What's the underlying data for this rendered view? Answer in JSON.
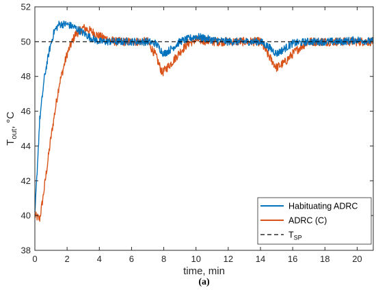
{
  "chart_data": {
    "type": "line",
    "xlabel": "time, min",
    "ylabel_main": "T",
    "ylabel_sub": "out",
    "ylabel_suffix": ", °C",
    "xlim": [
      0,
      21
    ],
    "ylim": [
      38,
      52
    ],
    "xticks": [
      0,
      2,
      4,
      6,
      8,
      10,
      12,
      14,
      16,
      18,
      20
    ],
    "yticks": [
      38,
      40,
      42,
      44,
      46,
      48,
      50,
      52
    ],
    "grid": false,
    "legend_position": "bottom-right",
    "subfigure_label": "(a)",
    "series": [
      {
        "name": "Habituating ADRC",
        "color": "#0072BD",
        "style": "solid",
        "noise": 0.22,
        "points": [
          [
            0,
            40.0
          ],
          [
            0.3,
            45.5
          ],
          [
            0.6,
            48.0
          ],
          [
            0.9,
            49.5
          ],
          [
            1.2,
            50.6
          ],
          [
            1.5,
            51.0
          ],
          [
            2.0,
            51.0
          ],
          [
            2.5,
            50.8
          ],
          [
            3.0,
            50.5
          ],
          [
            3.5,
            50.2
          ],
          [
            4.0,
            50.0
          ],
          [
            5.0,
            50.0
          ],
          [
            7.0,
            50.0
          ],
          [
            7.5,
            49.9
          ],
          [
            8.0,
            49.3
          ],
          [
            8.5,
            49.6
          ],
          [
            9.0,
            50.0
          ],
          [
            10.0,
            50.3
          ],
          [
            11.0,
            50.1
          ],
          [
            12.0,
            50.0
          ],
          [
            13.0,
            50.0
          ],
          [
            14.0,
            50.0
          ],
          [
            14.5,
            49.7
          ],
          [
            15.0,
            49.3
          ],
          [
            15.5,
            49.6
          ],
          [
            16.0,
            49.9
          ],
          [
            17.0,
            50.0
          ],
          [
            19.0,
            50.0
          ],
          [
            20.0,
            50.1
          ],
          [
            21.0,
            50.0
          ]
        ]
      },
      {
        "name": "ADRC (C)",
        "color": "#D95319",
        "style": "solid",
        "noise": 0.25,
        "points": [
          [
            0,
            40.0
          ],
          [
            0.3,
            39.8
          ],
          [
            0.5,
            41.0
          ],
          [
            1.0,
            44.5
          ],
          [
            1.5,
            47.5
          ],
          [
            2.0,
            49.3
          ],
          [
            2.5,
            50.4
          ],
          [
            3.0,
            50.8
          ],
          [
            3.5,
            50.6
          ],
          [
            4.0,
            50.3
          ],
          [
            5.0,
            50.0
          ],
          [
            7.0,
            50.0
          ],
          [
            7.5,
            49.2
          ],
          [
            7.9,
            48.2
          ],
          [
            8.5,
            48.8
          ],
          [
            9.0,
            49.4
          ],
          [
            9.5,
            49.9
          ],
          [
            10.0,
            50.1
          ],
          [
            11.0,
            50.0
          ],
          [
            13.0,
            50.0
          ],
          [
            14.0,
            50.0
          ],
          [
            14.5,
            49.2
          ],
          [
            15.0,
            48.5
          ],
          [
            15.5,
            48.8
          ],
          [
            16.0,
            49.3
          ],
          [
            16.5,
            49.7
          ],
          [
            17.0,
            50.0
          ],
          [
            19.0,
            50.0
          ],
          [
            20.0,
            50.0
          ],
          [
            21.0,
            50.0
          ]
        ]
      },
      {
        "name_main": "T",
        "name_sub": "SP",
        "color": "#000000",
        "style": "dashed",
        "noise": 0,
        "points": [
          [
            0,
            50.0
          ],
          [
            21.0,
            50.0
          ]
        ]
      }
    ]
  }
}
